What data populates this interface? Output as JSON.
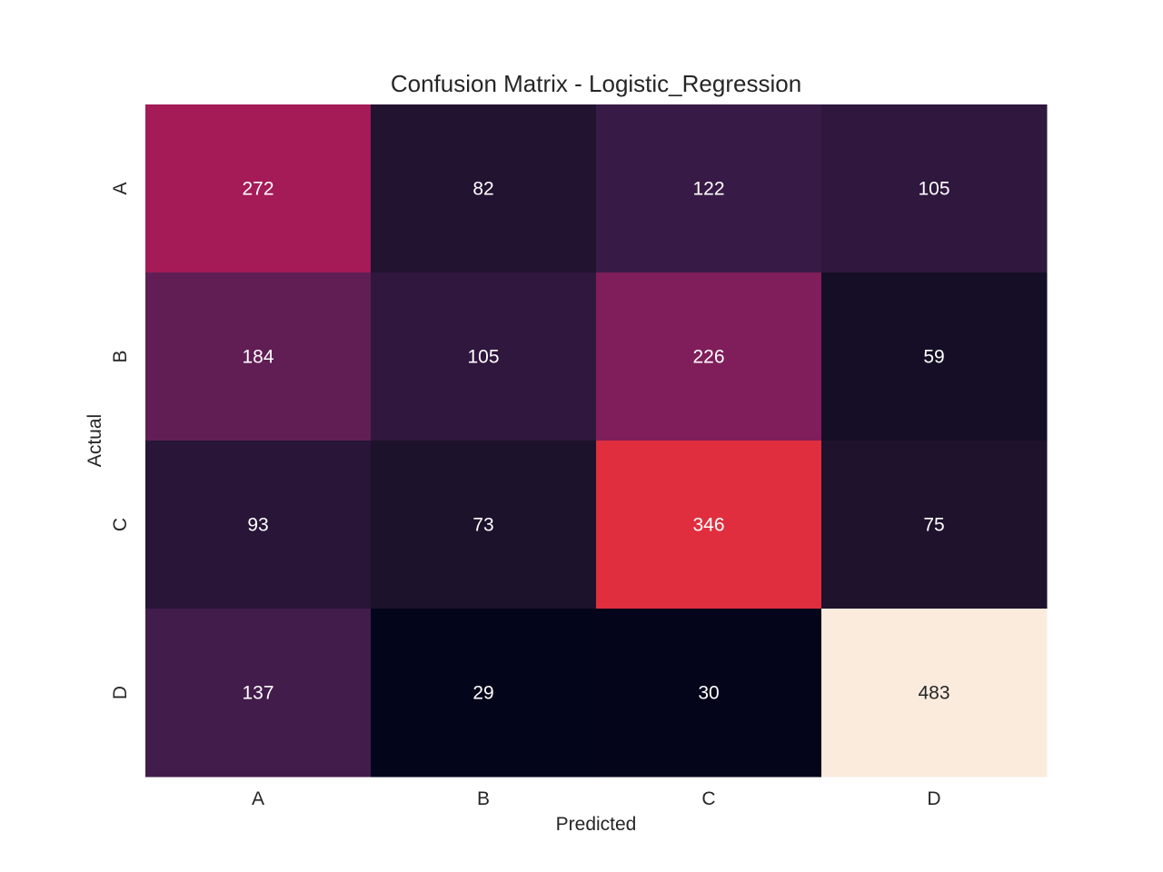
{
  "chart_data": {
    "type": "heatmap",
    "title": "Confusion Matrix - Logistic_Regression",
    "xlabel": "Predicted",
    "ylabel": "Actual",
    "x_categories": [
      "A",
      "B",
      "C",
      "D"
    ],
    "y_categories": [
      "A",
      "B",
      "C",
      "D"
    ],
    "values": [
      [
        272,
        82,
        122,
        105
      ],
      [
        184,
        105,
        226,
        59
      ],
      [
        93,
        73,
        346,
        75
      ],
      [
        137,
        29,
        30,
        483
      ]
    ],
    "colormap": "rocket",
    "colorbar": false,
    "annotations": true
  }
}
